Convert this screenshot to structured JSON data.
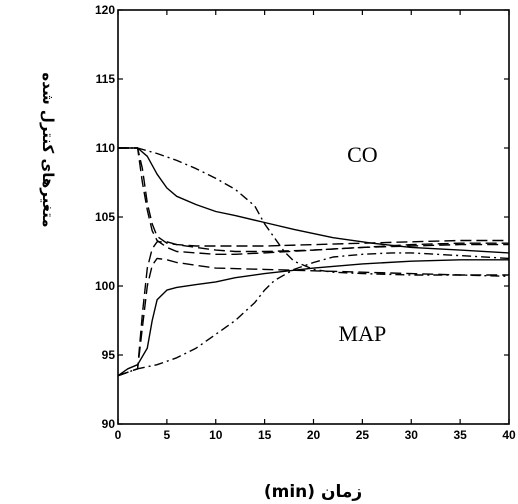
{
  "chart_data": {
    "type": "line",
    "title": "",
    "xlabel": "زمان (min)",
    "ylabel": "متغیرهای کنترل شده",
    "xlim": [
      0,
      40
    ],
    "ylim": [
      90,
      120
    ],
    "xticks": [
      0,
      5,
      10,
      15,
      20,
      25,
      30,
      35,
      40
    ],
    "yticks": [
      90,
      95,
      100,
      105,
      110,
      115,
      120
    ],
    "grid": false,
    "annotations": [
      {
        "text": "CO",
        "x": 25,
        "y": 109
      },
      {
        "text": "MAP",
        "x": 25,
        "y": 96
      }
    ],
    "series": [
      {
        "group": "CO",
        "style": "solid",
        "x": [
          0,
          2,
          3,
          4,
          5,
          6,
          8,
          10,
          12,
          15,
          18,
          22,
          26,
          30,
          35,
          40
        ],
        "y": [
          110,
          110,
          109.4,
          108.1,
          107.1,
          106.5,
          105.9,
          105.4,
          105.1,
          104.6,
          104.1,
          103.5,
          103.1,
          102.8,
          102.6,
          102.4
        ]
      },
      {
        "group": "CO",
        "style": "dashdot",
        "x": [
          0,
          2,
          4,
          6,
          8,
          10,
          12,
          14,
          15,
          16,
          17,
          18,
          20,
          22,
          25,
          30,
          35,
          40
        ],
        "y": [
          110,
          110,
          109.6,
          109.1,
          108.5,
          107.8,
          107,
          105.8,
          104.5,
          103.5,
          102.5,
          101.8,
          101.2,
          101,
          100.9,
          100.8,
          100.8,
          100.7
        ]
      },
      {
        "group": "CO",
        "style": "dashed",
        "x": [
          0,
          2,
          2.5,
          3,
          3.5,
          4,
          5,
          6,
          8,
          10,
          15,
          20,
          25,
          30,
          35,
          40
        ],
        "y": [
          110,
          110,
          108.5,
          106,
          104.5,
          103.6,
          103.1,
          103,
          102.9,
          102.9,
          102.9,
          103,
          103.1,
          103.2,
          103.3,
          103.3
        ]
      },
      {
        "group": "CO",
        "style": "dashed",
        "x": [
          0,
          2,
          2.5,
          3,
          3.5,
          4,
          5,
          6,
          8,
          10,
          12,
          15,
          20,
          25,
          30,
          35,
          40
        ],
        "y": [
          110,
          110,
          107.5,
          105.5,
          104,
          103.3,
          102.8,
          102.5,
          102.4,
          102.3,
          102.3,
          102.4,
          102.6,
          102.8,
          102.9,
          103,
          103
        ]
      },
      {
        "group": "MAP",
        "style": "solid",
        "x": [
          0,
          1,
          2,
          3,
          3.5,
          4,
          5,
          6,
          8,
          10,
          12,
          15,
          20,
          25,
          30,
          35,
          40
        ],
        "y": [
          93.5,
          94,
          94.3,
          95.5,
          97.5,
          99,
          99.7,
          99.9,
          100.1,
          100.3,
          100.6,
          100.9,
          101.3,
          101.6,
          101.8,
          101.9,
          101.9
        ]
      },
      {
        "group": "MAP",
        "style": "dashdot",
        "x": [
          0,
          2,
          4,
          6,
          8,
          10,
          12,
          14,
          15,
          16,
          18,
          20,
          22,
          25,
          28,
          30,
          35,
          40
        ],
        "y": [
          93.5,
          94,
          94.3,
          94.8,
          95.5,
          96.5,
          97.5,
          98.8,
          99.7,
          100.4,
          101.2,
          101.7,
          102.1,
          102.3,
          102.4,
          102.4,
          102.2,
          102
        ]
      },
      {
        "group": "MAP",
        "style": "dashed",
        "x": [
          0,
          2,
          2.5,
          3,
          3.5,
          4,
          5,
          6,
          8,
          10,
          12,
          15,
          20,
          25,
          30,
          35,
          40
        ],
        "y": [
          93.5,
          94,
          98,
          101.3,
          102.7,
          103.2,
          103.2,
          103,
          102.8,
          102.6,
          102.5,
          102.5,
          102.6,
          102.8,
          103,
          103.1,
          103.1
        ]
      },
      {
        "group": "MAP",
        "style": "dashed",
        "x": [
          0,
          2,
          2.5,
          3,
          3.5,
          4,
          5,
          6,
          8,
          10,
          15,
          20,
          25,
          30,
          35,
          40
        ],
        "y": [
          93.5,
          94,
          97,
          100,
          101.5,
          102,
          101.9,
          101.7,
          101.5,
          101.3,
          101.2,
          101.1,
          101,
          100.9,
          100.8,
          100.8
        ]
      }
    ]
  }
}
